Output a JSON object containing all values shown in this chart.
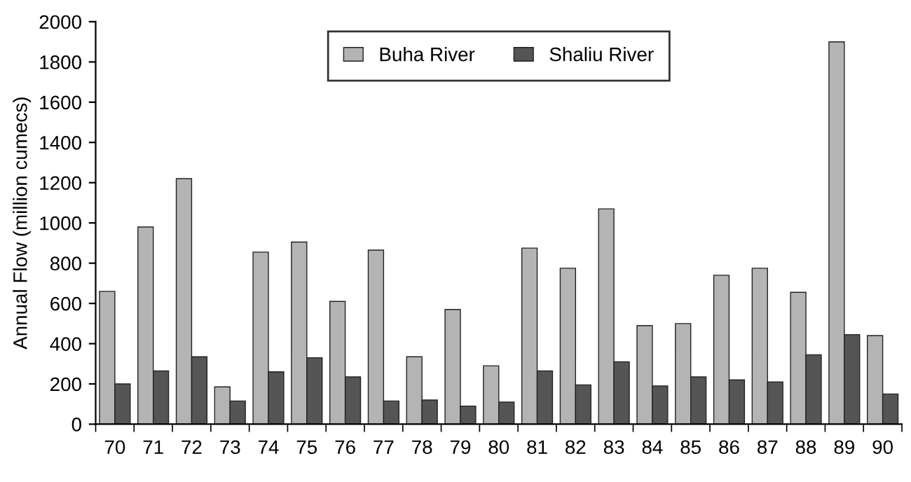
{
  "chart_data": {
    "type": "bar",
    "ylabel": "Annual Flow (million cumecs)",
    "categories": [
      "70",
      "71",
      "72",
      "73",
      "74",
      "75",
      "76",
      "77",
      "78",
      "79",
      "80",
      "81",
      "82",
      "83",
      "84",
      "85",
      "86",
      "87",
      "88",
      "89",
      "90"
    ],
    "series": [
      {
        "name": "Buha River",
        "color": "#b4b4b4",
        "values": [
          660,
          980,
          1220,
          185,
          855,
          905,
          610,
          865,
          335,
          570,
          290,
          875,
          775,
          1070,
          490,
          500,
          740,
          775,
          655,
          1900,
          440
        ]
      },
      {
        "name": "Shaliu River",
        "color": "#555555",
        "values": [
          200,
          265,
          335,
          115,
          260,
          330,
          235,
          115,
          120,
          90,
          110,
          265,
          195,
          310,
          190,
          235,
          220,
          210,
          345,
          445,
          150
        ]
      }
    ],
    "ylim": [
      0,
      2000
    ],
    "yticks": [
      0,
      200,
      400,
      600,
      800,
      1000,
      1200,
      1400,
      1600,
      1800,
      2000
    ],
    "grid": false,
    "legend": "top"
  }
}
